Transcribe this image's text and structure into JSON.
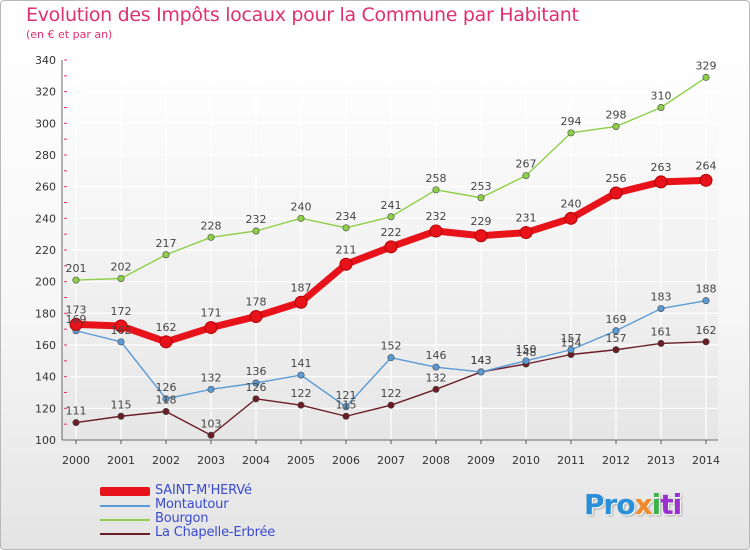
{
  "title": "Evolution des Impôts locaux pour la Commune par Habitant",
  "subtitle": "(en € et par an)",
  "logo": [
    "Pro",
    "x",
    "i",
    "ti"
  ],
  "colors": {
    "title": "#e0306f",
    "axis_text": "#333333",
    "grid": "#ffffff",
    "legend_text": "#3a4ad0",
    "plot_bg_top": "#ffffff",
    "plot_bg_bottom": "#e6e6e6"
  },
  "chart_data": {
    "type": "line",
    "title": "Evolution des Impôts locaux pour la Commune par Habitant",
    "subtitle": "(en € et par an)",
    "x": [
      "2000",
      "2001",
      "2002",
      "2003",
      "2004",
      "2005",
      "2006",
      "2007",
      "2008",
      "2009",
      "2010",
      "2011",
      "2012",
      "2013",
      "2014"
    ],
    "ylim": [
      100,
      340
    ],
    "yticks": [
      100,
      120,
      140,
      160,
      180,
      200,
      220,
      240,
      260,
      280,
      300,
      320,
      340
    ],
    "grid": true,
    "legend_position": "bottom-left",
    "series": [
      {
        "name": "SAINT-M'HERVé",
        "color": "#e8121b",
        "values": [
          173,
          172,
          162,
          171,
          178,
          187,
          211,
          222,
          232,
          229,
          231,
          240,
          256,
          263,
          264
        ]
      },
      {
        "name": "Montautour",
        "color": "#5b9bd5",
        "values": [
          169,
          162,
          126,
          132,
          136,
          141,
          121,
          152,
          146,
          143,
          150,
          157,
          169,
          183,
          188
        ]
      },
      {
        "name": "Bourgon",
        "color": "#8ecf4a",
        "values": [
          201,
          202,
          217,
          228,
          232,
          240,
          234,
          241,
          258,
          253,
          267,
          294,
          298,
          310,
          329
        ]
      },
      {
        "name": "La Chapelle-Erbrée",
        "color": "#6b1d25",
        "values": [
          111,
          115,
          118,
          103,
          126,
          122,
          115,
          122,
          132,
          143,
          148,
          154,
          157,
          161,
          162
        ]
      }
    ]
  }
}
